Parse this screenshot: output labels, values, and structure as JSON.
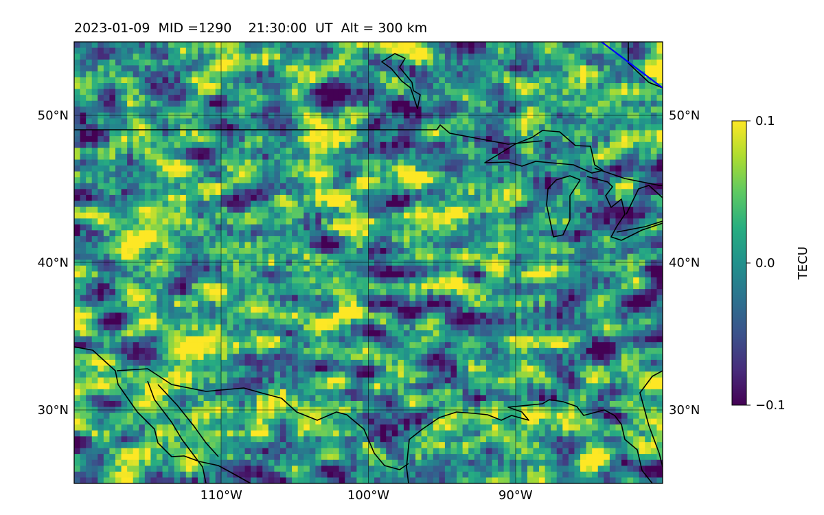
{
  "title": "2023-01-09  MID =1290    21:30:00  UT  Alt = 300 km",
  "chart_data": {
    "type": "heatmap",
    "title": "2023-01-09  MID =1290    21:30:00  UT  Alt = 300 km",
    "variable": "TECU",
    "xlim": [
      -120,
      -80
    ],
    "ylim": [
      25,
      55
    ],
    "x_ticks": [
      {
        "value": -110,
        "label": "110°W"
      },
      {
        "value": -100,
        "label": "100°W"
      },
      {
        "value": -90,
        "label": "90°W"
      }
    ],
    "y_ticks": [
      {
        "value": 30,
        "label": "30°N"
      },
      {
        "value": 40,
        "label": "40°N"
      },
      {
        "value": 50,
        "label": "50°N"
      }
    ],
    "grid": true,
    "colormap": "viridis",
    "colorbar": {
      "label": "TECU",
      "min": -0.1,
      "max": 0.1,
      "ticks": [
        {
          "value": 0.1,
          "label": "0.1"
        },
        {
          "value": 0.0,
          "label": "0.0"
        },
        {
          "value": -0.1,
          "label": "−0.1"
        }
      ],
      "placement": "right"
    },
    "field_character": "noisy small-scale perturbations, mostly near 0.0 with scattered positive (yellow) and negative (purple) patches; positive patches concentrated west of 100°W between 28°N and 48°N",
    "overlays": [
      "coastlines",
      "country borders",
      "magnetic reference line (blue, top-right)"
    ]
  },
  "colors": {
    "frame": "#000000",
    "coastline": "#000000",
    "reference_line": "#0000ff",
    "viridis_low": "#440154",
    "viridis_mid": "#21918c",
    "viridis_high": "#fde725"
  }
}
